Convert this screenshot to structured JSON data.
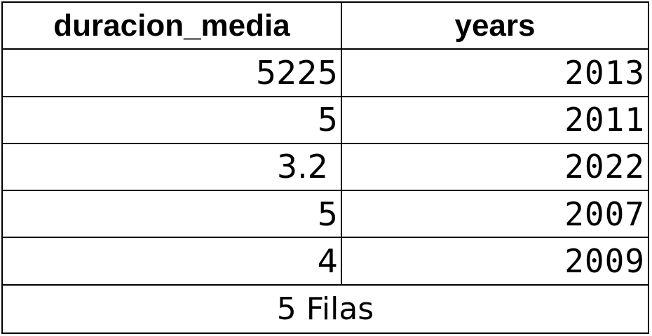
{
  "table": {
    "headers": [
      "duracion_media",
      "years"
    ],
    "rows": [
      {
        "duracion_media": "5225",
        "years": "2013"
      },
      {
        "duracion_media": "5",
        "years": "2011"
      },
      {
        "duracion_media": "3.2",
        "years": "2022"
      },
      {
        "duracion_media": "5",
        "years": "2007"
      },
      {
        "duracion_media": "4",
        "years": "2009"
      }
    ],
    "footer": "5 Filas"
  }
}
